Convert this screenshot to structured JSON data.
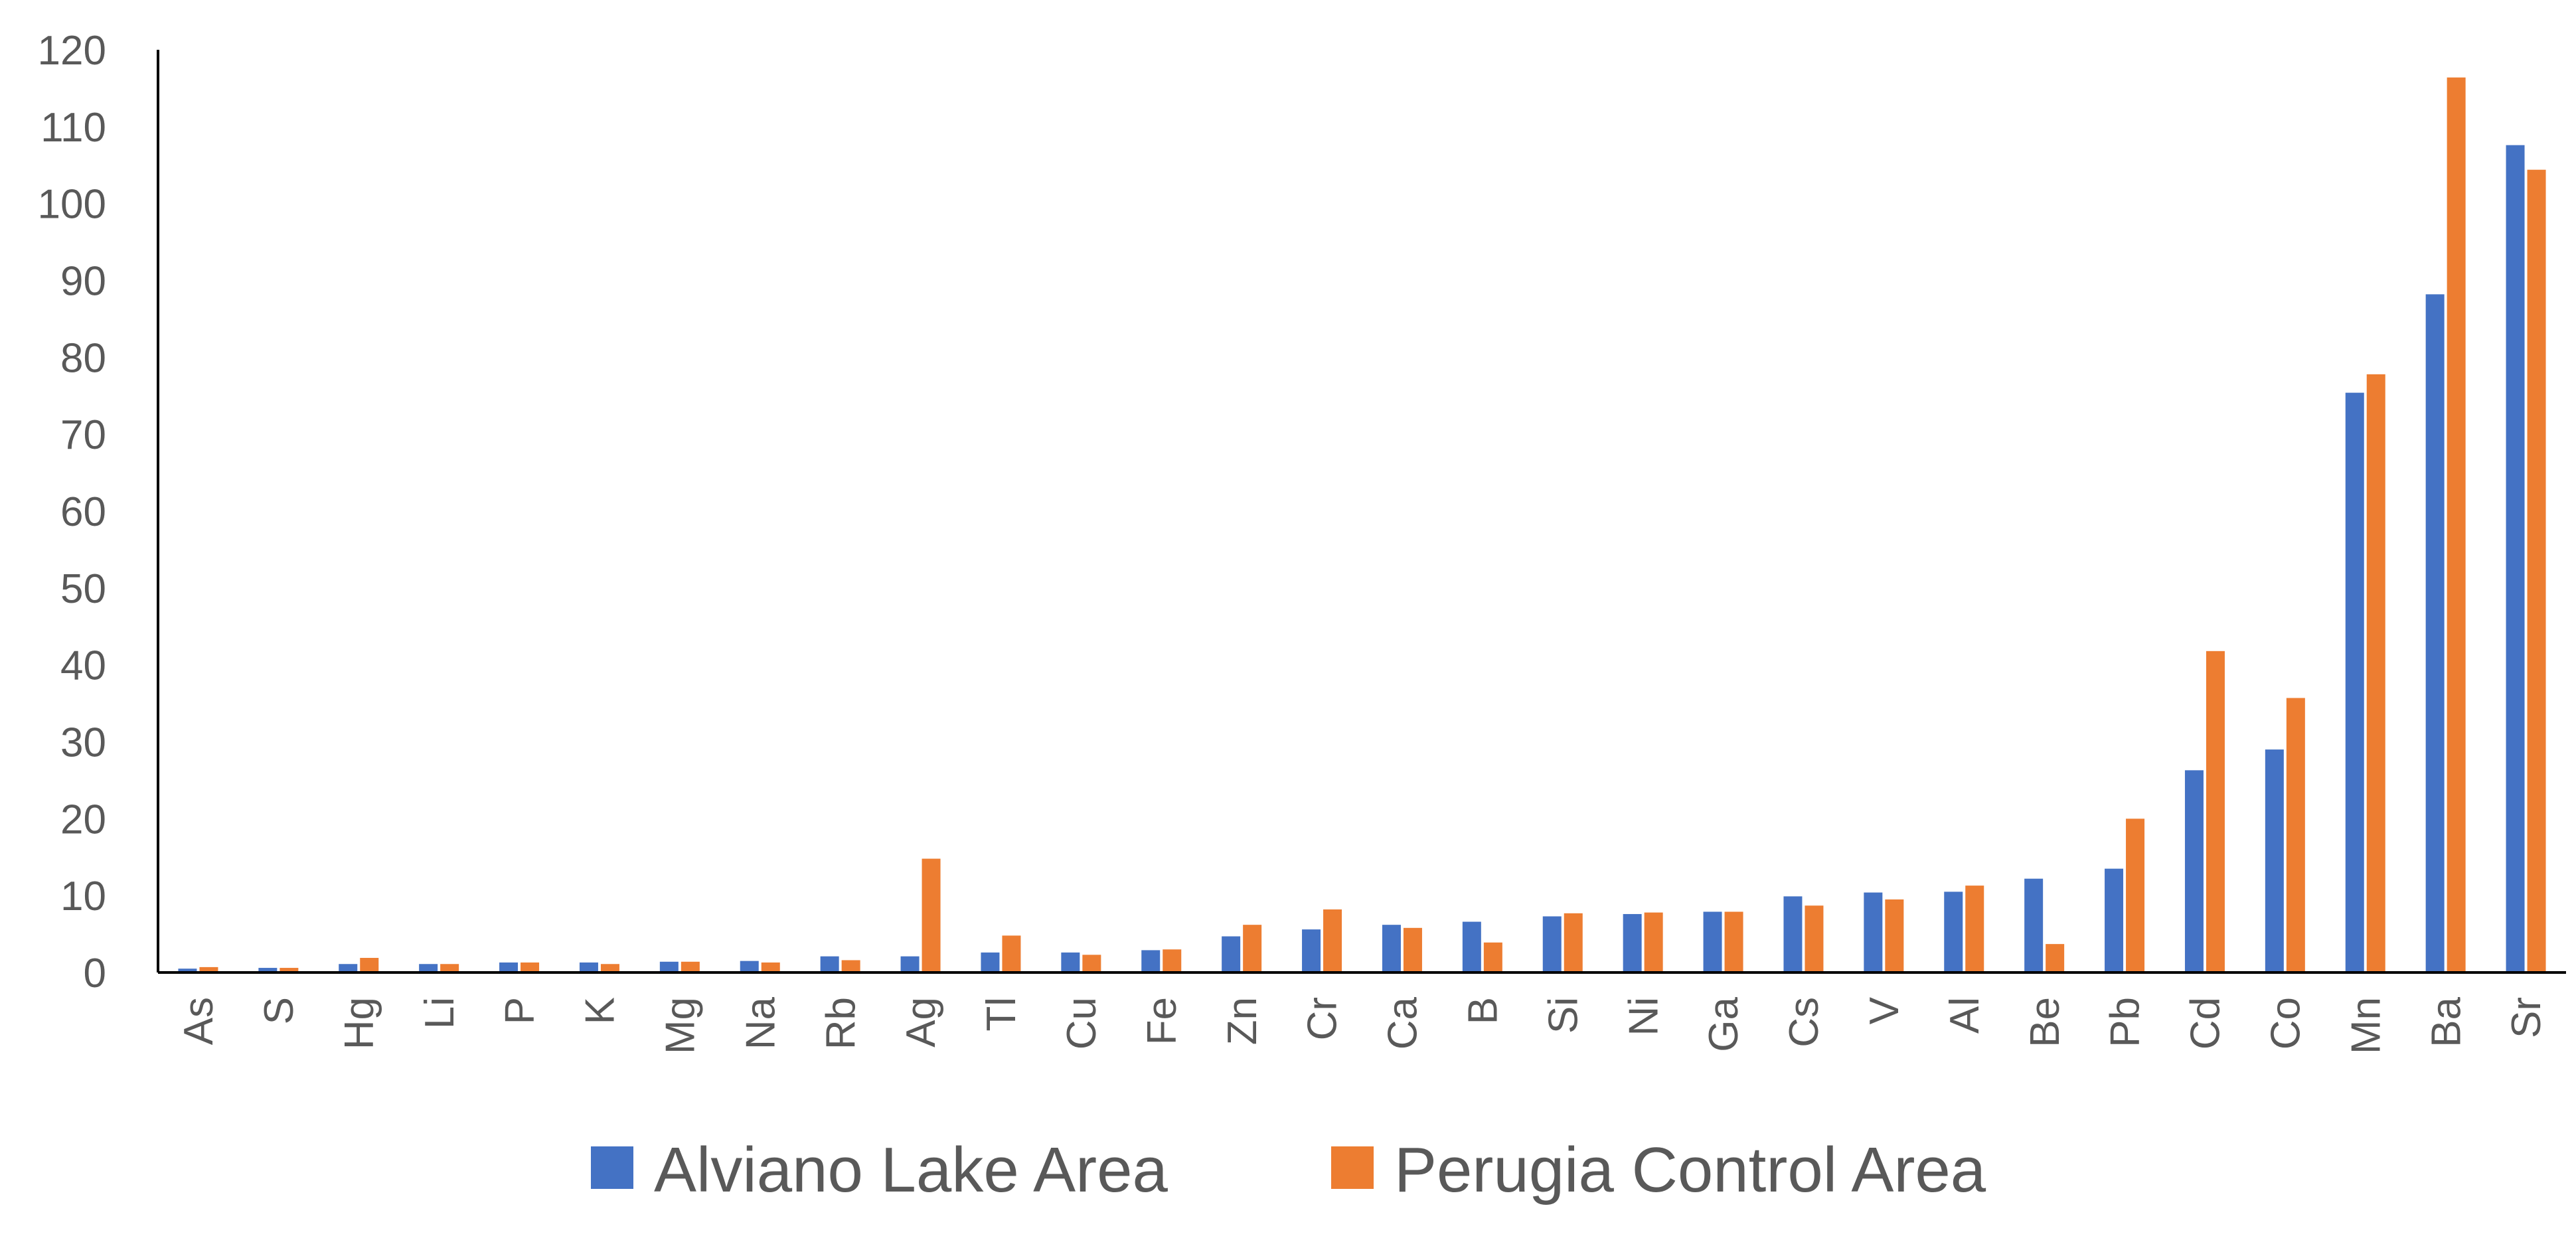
{
  "chart_data": {
    "type": "bar",
    "title": "",
    "xlabel": "",
    "ylabel": "",
    "ylim": [
      0,
      120
    ],
    "yticks": [
      0,
      10,
      20,
      30,
      40,
      50,
      60,
      70,
      80,
      90,
      100,
      110,
      120
    ],
    "grid": false,
    "legend_position": "bottom",
    "categories": [
      "As",
      "S",
      "Hg",
      "Li",
      "P",
      "K",
      "Mg",
      "Na",
      "Rb",
      "Ag",
      "Tl",
      "Cu",
      "Fe",
      "Zn",
      "Cr",
      "Ca",
      "B",
      "Si",
      "Ni",
      "Ga",
      "Cs",
      "V",
      "Al",
      "Be",
      "Pb",
      "Cd",
      "Co",
      "Mn",
      "Ba",
      "Sr"
    ],
    "series": [
      {
        "name": "Alviano Lake Area",
        "color": "#4472C4",
        "values": [
          0.5,
          0.6,
          1.1,
          1.1,
          1.3,
          1.3,
          1.4,
          1.5,
          2.1,
          2.1,
          2.6,
          2.6,
          2.9,
          4.7,
          5.6,
          6.2,
          6.6,
          7.3,
          7.6,
          7.9,
          9.9,
          10.4,
          10.5,
          12.2,
          13.5,
          26.3,
          29.0,
          75.4,
          88.2,
          107.6
        ]
      },
      {
        "name": "Perugia Control Area",
        "color": "#ED7D31",
        "values": [
          0.7,
          0.6,
          1.9,
          1.1,
          1.3,
          1.1,
          1.4,
          1.3,
          1.6,
          14.8,
          4.8,
          2.3,
          3.0,
          6.2,
          8.2,
          5.8,
          3.9,
          7.7,
          7.8,
          7.9,
          8.7,
          9.5,
          11.3,
          3.7,
          20.0,
          41.8,
          35.7,
          77.8,
          116.4,
          104.4
        ]
      }
    ]
  }
}
